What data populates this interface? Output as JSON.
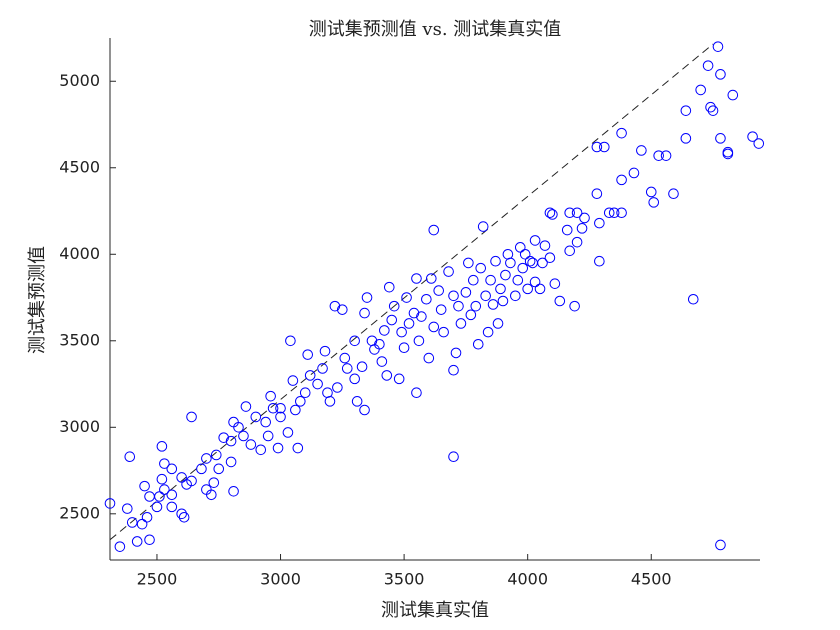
{
  "chart_data": {
    "type": "scatter",
    "title": "测试集预测值 vs. 测试集真实值",
    "x_label": "测试集真实值",
    "y_label": "测试集预测值",
    "color": "#0000ff",
    "xlim": [
      2310,
      4940
    ],
    "ylim": [
      2233,
      5250
    ],
    "xticks": [
      2500,
      3000,
      3500,
      4000,
      4500
    ],
    "yticks": [
      2500,
      3000,
      3500,
      4000,
      4500,
      5000
    ],
    "reference_line": {
      "x": [
        2310,
        4750
      ],
      "y": [
        2350,
        5215
      ]
    },
    "x": [
      4780,
      3700,
      2390,
      2640,
      3620,
      4670,
      4770,
      4730,
      4780,
      4700,
      4830,
      4640,
      4740,
      4750,
      4910,
      4935,
      4780,
      4810,
      4810,
      4640,
      4380,
      4280,
      4310,
      4460,
      4530,
      4560,
      4500,
      4590,
      4510,
      4430,
      4380,
      4280,
      4350,
      4330,
      4380,
      4290,
      4200,
      4170,
      4230,
      4100,
      4090,
      4160,
      4220,
      4200,
      4170,
      4070,
      4030,
      4290,
      4090,
      4060,
      4020,
      4110,
      4190,
      4130,
      2310,
      2350,
      2400,
      2380,
      2420,
      2440,
      2460,
      2470,
      2450,
      2500,
      2510,
      2470,
      2520,
      2530,
      2560,
      2560,
      2600,
      2610,
      2620,
      2640,
      2600,
      2530,
      2520,
      2560,
      2680,
      2700,
      2720,
      2730,
      2750,
      2700,
      2740,
      2770,
      2800,
      2810,
      2800,
      2830,
      2850,
      2810,
      2860,
      2900,
      2880,
      2920,
      2950,
      2940,
      2970,
      2960,
      3000,
      3000,
      2990,
      3030,
      3040,
      3060,
      3070,
      3050,
      3080,
      3100,
      3110,
      3120,
      3150,
      3170,
      3180,
      3190,
      3200,
      3230,
      3220,
      3250,
      3260,
      3270,
      3300,
      3300,
      3310,
      3340,
      3330,
      3340,
      3350,
      3370,
      3380,
      3400,
      3410,
      3420,
      3430,
      3440,
      3450,
      3460,
      3480,
      3490,
      3500,
      3510,
      3520,
      3540,
      3550,
      3560,
      3550,
      3570,
      3590,
      3600,
      3610,
      3620,
      3640,
      3650,
      3660,
      3680,
      3700,
      3700,
      3710,
      3720,
      3730,
      3750,
      3760,
      3770,
      3780,
      3790,
      3800,
      3810,
      3820,
      3830,
      3840,
      3850,
      3860,
      3870,
      3880,
      3890,
      3900,
      3910,
      3920,
      3930,
      3950,
      3960,
      3970,
      3980,
      3990,
      4000,
      4010,
      4030,
      4050
    ],
    "values": [
      2320,
      2830,
      2830,
      3060,
      4140,
      3740,
      5200,
      5090,
      5040,
      4950,
      4920,
      4830,
      4850,
      4830,
      4680,
      4640,
      4670,
      4590,
      4580,
      4670,
      4700,
      4620,
      4620,
      4600,
      4570,
      4570,
      4360,
      4350,
      4300,
      4470,
      4430,
      4350,
      4240,
      4240,
      4240,
      4180,
      4240,
      4240,
      4210,
      4230,
      4240,
      4140,
      4150,
      4070,
      4020,
      4050,
      4080,
      3960,
      3980,
      3950,
      3950,
      3830,
      3700,
      3730,
      2560,
      2310,
      2450,
      2530,
      2340,
      2440,
      2480,
      2350,
      2660,
      2540,
      2600,
      2600,
      2700,
      2640,
      2610,
      2540,
      2500,
      2480,
      2670,
      2690,
      2710,
      2790,
      2890,
      2760,
      2760,
      2640,
      2610,
      2680,
      2760,
      2820,
      2840,
      2940,
      2800,
      2630,
      2920,
      3000,
      2950,
      3030,
      3120,
      3060,
      2900,
      2870,
      2950,
      3030,
      3110,
      3180,
      3110,
      3060,
      2880,
      2970,
      3500,
      3100,
      2880,
      3270,
      3150,
      3200,
      3420,
      3300,
      3250,
      3340,
      3440,
      3200,
      3150,
      3230,
      3700,
      3680,
      3400,
      3340,
      3500,
      3280,
      3150,
      3100,
      3350,
      3660,
      3750,
      3500,
      3450,
      3480,
      3380,
      3560,
      3300,
      3810,
      3620,
      3700,
      3280,
      3550,
      3460,
      3750,
      3600,
      3660,
      3860,
      3500,
      3200,
      3640,
      3740,
      3400,
      3860,
      3580,
      3790,
      3680,
      3550,
      3900,
      3760,
      3330,
      3430,
      3700,
      3600,
      3780,
      3950,
      3650,
      3850,
      3700,
      3480,
      3920,
      4160,
      3760,
      3550,
      3850,
      3710,
      3960,
      3600,
      3800,
      3730,
      3880,
      4000,
      3950,
      3760,
      3850,
      4040,
      3920,
      4000,
      3800,
      3960,
      3840,
      3800
    ]
  }
}
